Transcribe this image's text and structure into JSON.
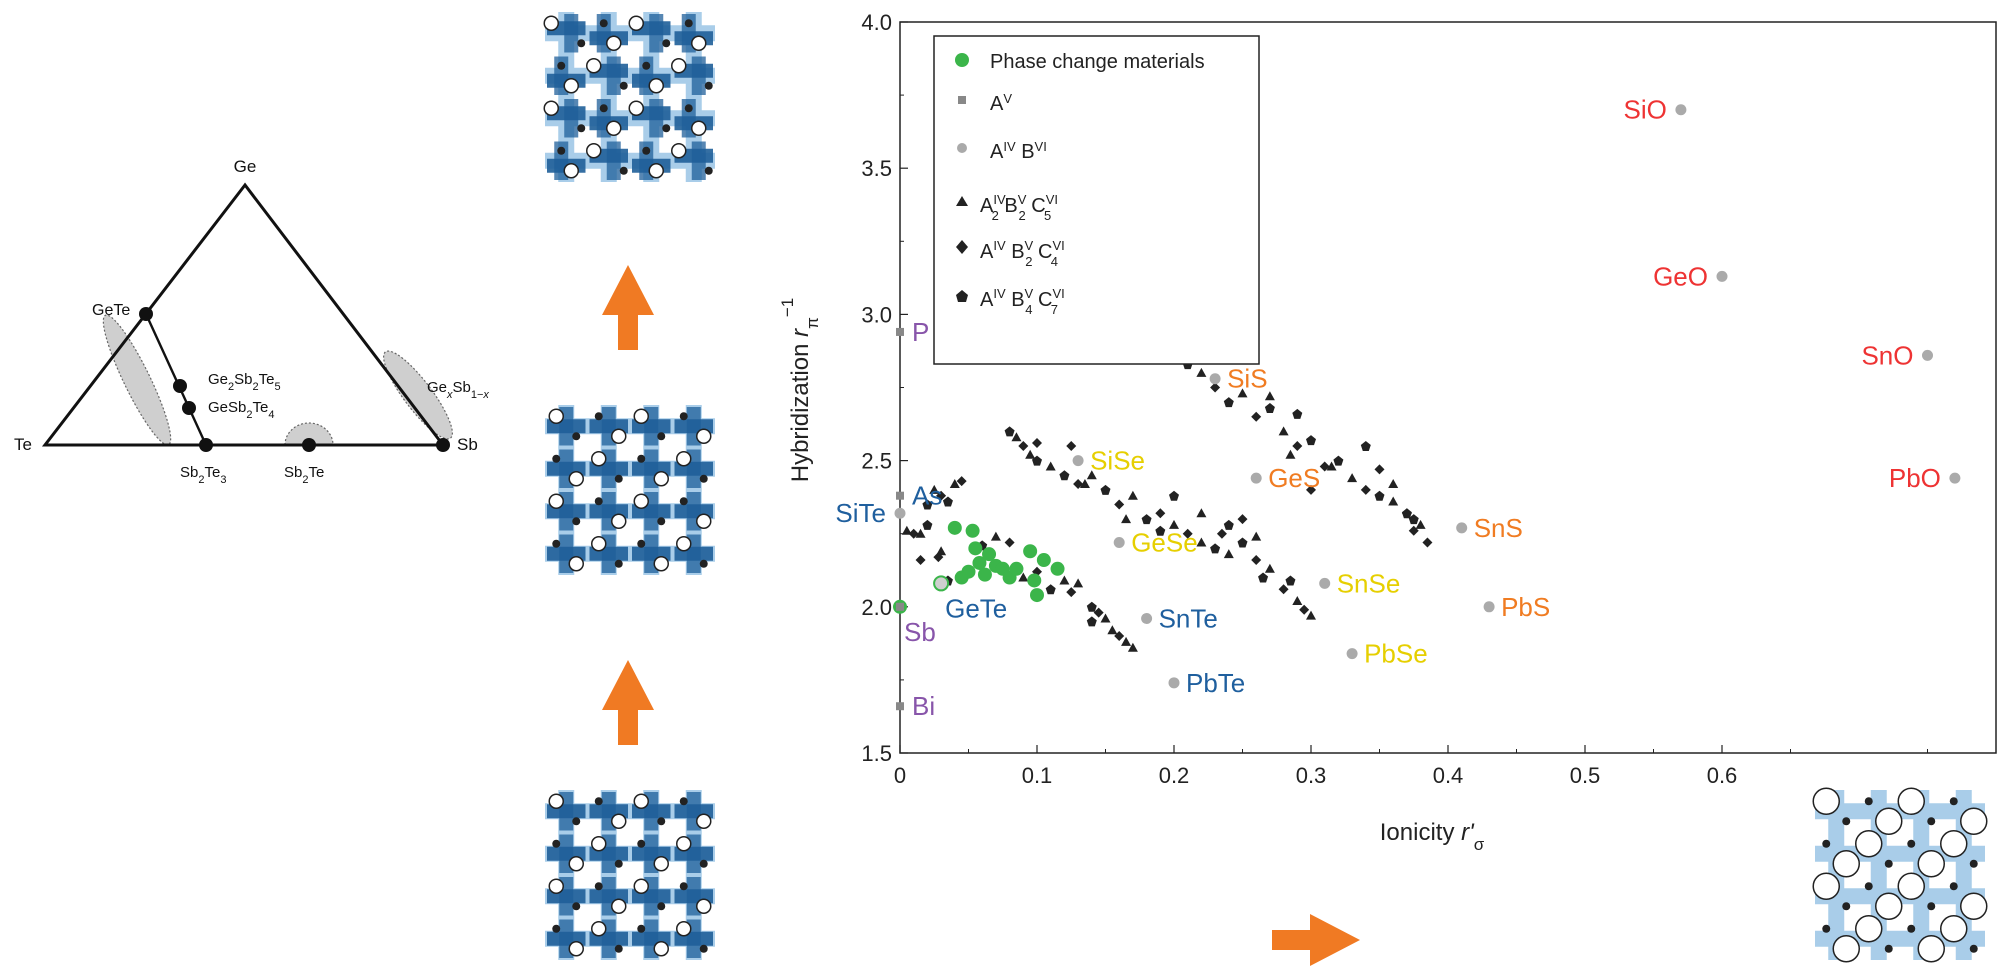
{
  "ternary": {
    "vertices": {
      "ge": "Ge",
      "te": "Te",
      "sb": "Sb"
    },
    "compounds": {
      "gete": "GeTe",
      "ge2sb2te5": "Ge2Sb2Te5",
      "gesb2te4": "GeSb2Te4",
      "sb2te3": "Sb2Te3",
      "sb2te": "Sb2Te",
      "gexsb": "GexSb1−x"
    }
  },
  "colors": {
    "pcm": "#3bb54a",
    "grey_point": "#aaaaaa",
    "dark_point": "#222222",
    "red": "#ee3333",
    "orange": "#f07c22",
    "yellow": "#e6cf00",
    "blue": "#1f5f9e",
    "purple": "#8855aa",
    "arrow": "#f07a23",
    "lattice_dark": "#1f5f99",
    "lattice_light": "#a9cde9"
  },
  "legend": {
    "items": [
      {
        "symbol": "circle-green",
        "text": "Phase change materials"
      },
      {
        "symbol": "square-grey",
        "text": "A^V"
      },
      {
        "symbol": "circle-grey",
        "text": "A^IV B^VI"
      },
      {
        "symbol": "triangle-black",
        "text": "A^IV_2 B^V_2 C^VI_5"
      },
      {
        "symbol": "diamond-black",
        "text": "A^IV B^V_2 C^VI_4"
      },
      {
        "symbol": "pentagon-black",
        "text": "A^IV B^V_4 C^VI_7"
      }
    ]
  },
  "chart_data": {
    "type": "scatter",
    "xlabel": "Ionicity r'σ",
    "ylabel": "Hybridization r_π^−1",
    "xlim": [
      0,
      0.8
    ],
    "ylim": [
      1.5,
      4.0
    ],
    "xticks": [
      "0",
      "0.1",
      "0.2",
      "0.3",
      "0.4",
      "0.5",
      "0.6"
    ],
    "yticks": [
      "1.5",
      "2.0",
      "2.5",
      "3.0",
      "3.5",
      "4.0"
    ],
    "labeled_points": [
      {
        "label": "SiO",
        "x": 0.57,
        "y": 3.7,
        "color": "red",
        "marker": "circle",
        "side": "left"
      },
      {
        "label": "GeO",
        "x": 0.6,
        "y": 3.13,
        "color": "red",
        "marker": "circle",
        "side": "left"
      },
      {
        "label": "SnO",
        "x": 0.75,
        "y": 2.86,
        "color": "red",
        "marker": "circle",
        "side": "left"
      },
      {
        "label": "PbO",
        "x": 0.77,
        "y": 2.44,
        "color": "red",
        "marker": "circle",
        "side": "left"
      },
      {
        "label": "SiS",
        "x": 0.23,
        "y": 2.78,
        "color": "orange",
        "marker": "circle",
        "side": "right"
      },
      {
        "label": "GeS",
        "x": 0.26,
        "y": 2.44,
        "color": "orange",
        "marker": "circle",
        "side": "right"
      },
      {
        "label": "SnS",
        "x": 0.41,
        "y": 2.27,
        "color": "orange",
        "marker": "circle",
        "side": "right"
      },
      {
        "label": "PbS",
        "x": 0.43,
        "y": 2.0,
        "color": "orange",
        "marker": "circle",
        "side": "right"
      },
      {
        "label": "SiSe",
        "x": 0.13,
        "y": 2.5,
        "color": "yellow",
        "marker": "circle",
        "side": "right"
      },
      {
        "label": "GeSe",
        "x": 0.16,
        "y": 2.22,
        "color": "yellow",
        "marker": "circle",
        "side": "right"
      },
      {
        "label": "SnSe",
        "x": 0.31,
        "y": 2.08,
        "color": "yellow",
        "marker": "circle",
        "side": "right"
      },
      {
        "label": "PbSe",
        "x": 0.33,
        "y": 1.84,
        "color": "yellow",
        "marker": "circle",
        "side": "right"
      },
      {
        "label": "SnTe",
        "x": 0.18,
        "y": 1.96,
        "color": "blue",
        "marker": "circle",
        "side": "right"
      },
      {
        "label": "PbTe",
        "x": 0.2,
        "y": 1.74,
        "color": "blue",
        "marker": "circle",
        "side": "right"
      },
      {
        "label": "P",
        "x": 0.0,
        "y": 2.94,
        "color": "purple",
        "marker": "square",
        "side": "right"
      },
      {
        "label": "As",
        "x": 0.0,
        "y": 2.38,
        "color": "blue",
        "marker": "square",
        "side": "right"
      },
      {
        "label": "SiTe",
        "x": 0.0,
        "y": 2.32,
        "color": "blue",
        "marker": "circle",
        "side": "left"
      },
      {
        "label": "Sb",
        "x": 0.0,
        "y": 2.0,
        "color": "purple",
        "marker": "square",
        "side": "belowright"
      },
      {
        "label": "GeTe",
        "x": 0.03,
        "y": 2.08,
        "color": "blue",
        "marker": "circle-green",
        "side": "belowright"
      },
      {
        "label": "Bi",
        "x": 0.0,
        "y": 1.66,
        "color": "purple",
        "marker": "square",
        "side": "right"
      }
    ],
    "pcm_points": [
      [
        0.0,
        2.0
      ],
      [
        0.04,
        2.27
      ],
      [
        0.053,
        2.26
      ],
      [
        0.045,
        2.1
      ],
      [
        0.05,
        2.12
      ],
      [
        0.058,
        2.15
      ],
      [
        0.062,
        2.11
      ],
      [
        0.065,
        2.18
      ],
      [
        0.07,
        2.14
      ],
      [
        0.075,
        2.13
      ],
      [
        0.08,
        2.1
      ],
      [
        0.085,
        2.13
      ],
      [
        0.095,
        2.19
      ],
      [
        0.098,
        2.09
      ],
      [
        0.1,
        2.04
      ],
      [
        0.105,
        2.16
      ],
      [
        0.115,
        2.13
      ],
      [
        0.055,
        2.2
      ]
    ],
    "dark_points": [
      [
        "t",
        0.005,
        2.26
      ],
      [
        "d",
        0.01,
        2.25
      ],
      [
        "t",
        0.015,
        2.25
      ],
      [
        "p",
        0.02,
        2.35
      ],
      [
        "t",
        0.025,
        2.4
      ],
      [
        "d",
        0.03,
        2.38
      ],
      [
        "p",
        0.035,
        2.36
      ],
      [
        "t",
        0.04,
        2.42
      ],
      [
        "d",
        0.045,
        2.43
      ],
      [
        "p",
        0.02,
        2.28
      ],
      [
        "t",
        0.03,
        2.19
      ],
      [
        "d",
        0.028,
        2.17
      ],
      [
        "p",
        0.06,
        2.21
      ],
      [
        "t",
        0.07,
        2.24
      ],
      [
        "d",
        0.08,
        2.22
      ],
      [
        "t",
        0.09,
        2.1
      ],
      [
        "d",
        0.1,
        2.12
      ],
      [
        "p",
        0.11,
        2.06
      ],
      [
        "t",
        0.12,
        2.09
      ],
      [
        "d",
        0.125,
        2.05
      ],
      [
        "t",
        0.13,
        2.08
      ],
      [
        "p",
        0.14,
        2.0
      ],
      [
        "d",
        0.145,
        1.98
      ],
      [
        "t",
        0.15,
        1.96
      ],
      [
        "p",
        0.14,
        1.95
      ],
      [
        "t",
        0.155,
        1.92
      ],
      [
        "d",
        0.16,
        1.9
      ],
      [
        "t",
        0.165,
        1.88
      ],
      [
        "t",
        0.17,
        1.86
      ],
      [
        "d",
        0.015,
        2.16
      ],
      [
        "p",
        0.035,
        2.09
      ],
      [
        "p",
        0.08,
        2.6
      ],
      [
        "t",
        0.085,
        2.58
      ],
      [
        "d",
        0.09,
        2.55
      ],
      [
        "t",
        0.095,
        2.52
      ],
      [
        "p",
        0.1,
        2.5
      ],
      [
        "d",
        0.1,
        2.56
      ],
      [
        "t",
        0.11,
        2.48
      ],
      [
        "p",
        0.12,
        2.45
      ],
      [
        "d",
        0.13,
        2.42
      ],
      [
        "t",
        0.14,
        2.45
      ],
      [
        "p",
        0.15,
        2.4
      ],
      [
        "d",
        0.16,
        2.35
      ],
      [
        "t",
        0.17,
        2.38
      ],
      [
        "p",
        0.18,
        2.3
      ],
      [
        "d",
        0.19,
        2.32
      ],
      [
        "t",
        0.2,
        2.28
      ],
      [
        "p",
        0.2,
        2.38
      ],
      [
        "d",
        0.21,
        2.25
      ],
      [
        "t",
        0.22,
        2.22
      ],
      [
        "p",
        0.23,
        2.2
      ],
      [
        "d",
        0.235,
        2.25
      ],
      [
        "t",
        0.24,
        2.18
      ],
      [
        "p",
        0.25,
        2.22
      ],
      [
        "d",
        0.26,
        2.16
      ],
      [
        "t",
        0.165,
        2.3
      ],
      [
        "p",
        0.19,
        2.26
      ],
      [
        "d",
        0.125,
        2.55
      ],
      [
        "t",
        0.135,
        2.42
      ],
      [
        "p",
        0.18,
        2.92
      ],
      [
        "t",
        0.19,
        2.89
      ],
      [
        "d",
        0.2,
        2.86
      ],
      [
        "p",
        0.21,
        2.83
      ],
      [
        "t",
        0.22,
        2.8
      ],
      [
        "d",
        0.23,
        2.75
      ],
      [
        "p",
        0.24,
        2.7
      ],
      [
        "t",
        0.25,
        2.73
      ],
      [
        "d",
        0.26,
        2.65
      ],
      [
        "p",
        0.27,
        2.68
      ],
      [
        "t",
        0.28,
        2.6
      ],
      [
        "d",
        0.29,
        2.55
      ],
      [
        "p",
        0.3,
        2.57
      ],
      [
        "t",
        0.285,
        2.52
      ],
      [
        "d",
        0.31,
        2.48
      ],
      [
        "p",
        0.32,
        2.5
      ],
      [
        "t",
        0.33,
        2.44
      ],
      [
        "d",
        0.34,
        2.4
      ],
      [
        "p",
        0.35,
        2.38
      ],
      [
        "t",
        0.36,
        2.36
      ],
      [
        "d",
        0.37,
        2.32
      ],
      [
        "p",
        0.375,
        2.3
      ],
      [
        "t",
        0.38,
        2.28
      ],
      [
        "d",
        0.385,
        2.22
      ],
      [
        "t",
        0.27,
        2.72
      ],
      [
        "p",
        0.29,
        2.66
      ],
      [
        "d",
        0.3,
        2.4
      ],
      [
        "t",
        0.315,
        2.48
      ],
      [
        "p",
        0.265,
        2.1
      ],
      [
        "t",
        0.27,
        2.13
      ],
      [
        "d",
        0.28,
        2.06
      ],
      [
        "p",
        0.285,
        2.09
      ],
      [
        "t",
        0.29,
        2.02
      ],
      [
        "d",
        0.295,
        1.99
      ],
      [
        "t",
        0.3,
        1.97
      ],
      [
        "p",
        0.34,
        2.55
      ],
      [
        "d",
        0.35,
        2.47
      ],
      [
        "t",
        0.36,
        2.42
      ],
      [
        "p",
        0.37,
        2.32
      ],
      [
        "d",
        0.375,
        2.26
      ],
      [
        "t",
        0.22,
        2.32
      ],
      [
        "p",
        0.24,
        2.28
      ],
      [
        "d",
        0.25,
        2.3
      ],
      [
        "t",
        0.26,
        2.24
      ]
    ]
  }
}
